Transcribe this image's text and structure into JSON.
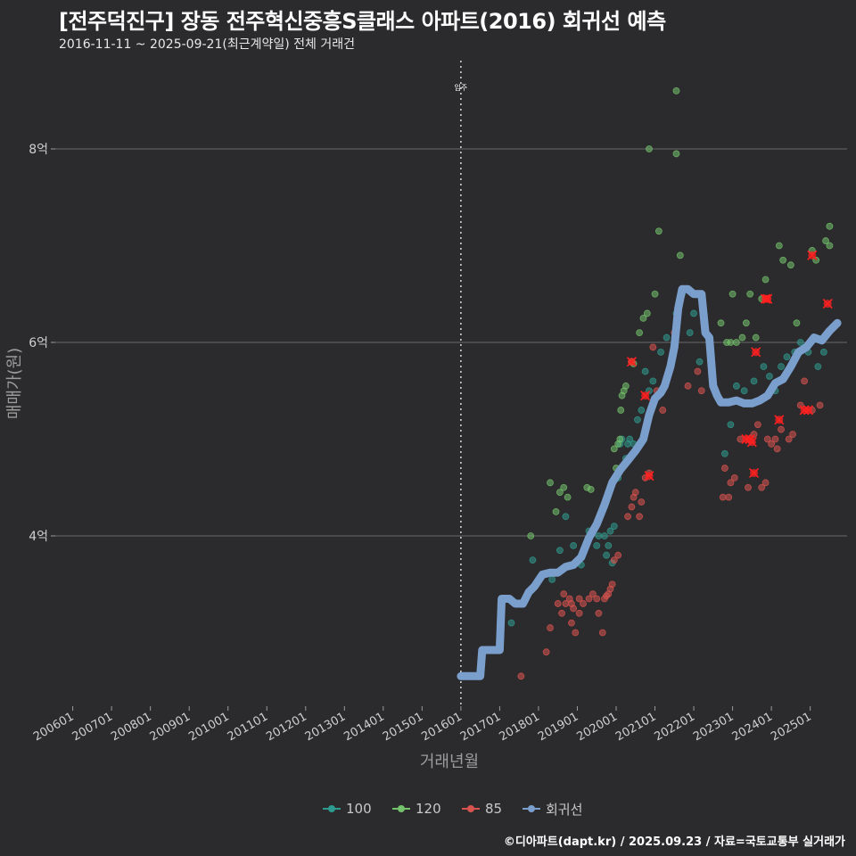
{
  "title": "[전주덕진구] 장동 전주혁신중흥S클래스 아파트(2016) 회귀선 예측",
  "subtitle": "2016-11-11 ~ 2025-09-21(최근계약일) 전체 거래건",
  "caption": "©디아파트(dapt.kr) / 2025.09.23 / 자료=국토교통부 실거래가",
  "colors": {
    "background": "#2b2b2d",
    "grid": "#6a6a6a",
    "s100": "#2f9a8f",
    "s120": "#74c26b",
    "s85": "#d9534f",
    "regression": "#7b9fcd",
    "highlight": "#ff2020"
  },
  "chart_data": {
    "type": "scatter",
    "title": "[전주덕진구] 장동 전주혁신중흥S클래스 아파트(2016) 회귀선 예측",
    "xlabel": "거래년월",
    "ylabel": "매매가(원)",
    "xlim": [
      2006.0,
      2025.9
    ],
    "ylim": [
      2.2,
      9.1
    ],
    "x_ticks": [
      {
        "label": "200601",
        "value": 2006.0
      },
      {
        "label": "200701",
        "value": 2007.0
      },
      {
        "label": "200801",
        "value": 2008.0
      },
      {
        "label": "200901",
        "value": 2009.0
      },
      {
        "label": "201001",
        "value": 2010.0
      },
      {
        "label": "201101",
        "value": 2011.0
      },
      {
        "label": "201201",
        "value": 2012.0
      },
      {
        "label": "201301",
        "value": 2013.0
      },
      {
        "label": "201401",
        "value": 2014.0
      },
      {
        "label": "201501",
        "value": 2015.0
      },
      {
        "label": "201601",
        "value": 2016.0
      },
      {
        "label": "201701",
        "value": 2017.0
      },
      {
        "label": "201801",
        "value": 2018.0
      },
      {
        "label": "201901",
        "value": 2019.0
      },
      {
        "label": "202001",
        "value": 2020.0
      },
      {
        "label": "202101",
        "value": 2021.0
      },
      {
        "label": "202201",
        "value": 2022.0
      },
      {
        "label": "202301",
        "value": 2023.0
      },
      {
        "label": "202401",
        "value": 2024.0
      },
      {
        "label": "202501",
        "value": 2025.0
      }
    ],
    "y_ticks": [
      {
        "label": "4억",
        "value": 4
      },
      {
        "label": "6억",
        "value": 6
      },
      {
        "label": "8억",
        "value": 8
      }
    ],
    "vline": {
      "x": 2016.0,
      "label": "입주"
    },
    "series": [
      {
        "name": "100",
        "color_key": "s100",
        "points": [
          [
            2017.85,
            3.75
          ],
          [
            2018.1,
            3.6
          ],
          [
            2018.35,
            3.55
          ],
          [
            2018.55,
            3.85
          ],
          [
            2018.7,
            4.2
          ],
          [
            2018.9,
            3.9
          ],
          [
            2019.1,
            3.7
          ],
          [
            2019.3,
            4.05
          ],
          [
            2019.5,
            3.9
          ],
          [
            2019.7,
            4.0
          ],
          [
            2019.75,
            3.8
          ],
          [
            2019.8,
            3.9
          ],
          [
            2019.85,
            4.05
          ],
          [
            2019.9,
            3.72
          ],
          [
            2019.95,
            4.1
          ],
          [
            2020.05,
            4.6
          ],
          [
            2020.15,
            5.0
          ],
          [
            2020.25,
            4.8
          ],
          [
            2020.35,
            5.0
          ],
          [
            2020.45,
            4.95
          ],
          [
            2020.55,
            5.2
          ],
          [
            2020.65,
            5.3
          ],
          [
            2020.75,
            5.7
          ],
          [
            2020.85,
            5.5
          ],
          [
            2020.95,
            5.6
          ],
          [
            2021.15,
            5.9
          ],
          [
            2021.3,
            6.05
          ],
          [
            2021.55,
            6.3
          ],
          [
            2021.7,
            6.5
          ],
          [
            2021.9,
            6.1
          ],
          [
            2022.0,
            6.3
          ],
          [
            2022.15,
            5.8
          ],
          [
            2022.8,
            4.85
          ],
          [
            2022.95,
            5.15
          ],
          [
            2023.1,
            5.55
          ],
          [
            2023.3,
            5.5
          ],
          [
            2023.55,
            5.6
          ],
          [
            2023.8,
            5.75
          ],
          [
            2023.95,
            5.65
          ],
          [
            2024.1,
            5.5
          ],
          [
            2024.25,
            5.75
          ],
          [
            2024.4,
            5.85
          ],
          [
            2024.6,
            5.9
          ],
          [
            2024.75,
            6.0
          ],
          [
            2024.95,
            5.9
          ],
          [
            2025.2,
            5.75
          ],
          [
            2025.35,
            5.9
          ],
          [
            2017.3,
            3.1
          ],
          [
            2019.55,
            4.0
          ],
          [
            2020.1,
            4.95
          ],
          [
            2020.3,
            4.95
          ]
        ]
      },
      {
        "name": "120",
        "color_key": "s120",
        "points": [
          [
            2017.8,
            4.0
          ],
          [
            2018.3,
            4.55
          ],
          [
            2018.45,
            4.25
          ],
          [
            2018.55,
            4.45
          ],
          [
            2018.65,
            4.5
          ],
          [
            2018.75,
            4.4
          ],
          [
            2019.25,
            4.5
          ],
          [
            2019.35,
            4.48
          ],
          [
            2019.95,
            4.9
          ],
          [
            2020.0,
            4.7
          ],
          [
            2020.05,
            4.95
          ],
          [
            2020.1,
            5.0
          ],
          [
            2020.12,
            5.3
          ],
          [
            2020.15,
            5.45
          ],
          [
            2020.2,
            5.5
          ],
          [
            2020.25,
            5.55
          ],
          [
            2020.4,
            5.8
          ],
          [
            2020.45,
            5.78
          ],
          [
            2020.6,
            6.1
          ],
          [
            2020.7,
            6.25
          ],
          [
            2020.8,
            6.3
          ],
          [
            2020.85,
            8.0
          ],
          [
            2021.0,
            6.5
          ],
          [
            2021.1,
            7.15
          ],
          [
            2021.55,
            8.6
          ],
          [
            2021.55,
            7.95
          ],
          [
            2021.65,
            6.9
          ],
          [
            2022.85,
            6.0
          ],
          [
            2022.95,
            6.0
          ],
          [
            2023.0,
            6.5
          ],
          [
            2023.1,
            6.0
          ],
          [
            2023.25,
            6.05
          ],
          [
            2023.35,
            6.2
          ],
          [
            2023.45,
            6.5
          ],
          [
            2023.75,
            6.45
          ],
          [
            2023.85,
            6.65
          ],
          [
            2024.2,
            7.0
          ],
          [
            2024.3,
            6.85
          ],
          [
            2024.5,
            6.8
          ],
          [
            2024.65,
            6.2
          ],
          [
            2025.05,
            6.95
          ],
          [
            2025.15,
            6.85
          ],
          [
            2025.4,
            7.05
          ],
          [
            2025.5,
            7.2
          ],
          [
            2025.5,
            7.0
          ],
          [
            2022.7,
            6.2
          ],
          [
            2023.6,
            6.05
          ]
        ]
      },
      {
        "name": "85",
        "color_key": "s85",
        "points": [
          [
            2017.55,
            2.55
          ],
          [
            2018.2,
            2.8
          ],
          [
            2018.3,
            3.05
          ],
          [
            2018.5,
            3.3
          ],
          [
            2018.6,
            3.2
          ],
          [
            2018.65,
            3.4
          ],
          [
            2018.7,
            3.3
          ],
          [
            2018.8,
            3.35
          ],
          [
            2018.85,
            3.3
          ],
          [
            2018.9,
            3.25
          ],
          [
            2018.95,
            3.0
          ],
          [
            2019.05,
            3.35
          ],
          [
            2019.15,
            3.3
          ],
          [
            2019.3,
            3.35
          ],
          [
            2019.4,
            3.4
          ],
          [
            2019.5,
            3.35
          ],
          [
            2019.55,
            3.2
          ],
          [
            2019.65,
            3.0
          ],
          [
            2019.7,
            3.35
          ],
          [
            2019.75,
            3.38
          ],
          [
            2019.8,
            3.4
          ],
          [
            2019.85,
            3.45
          ],
          [
            2019.9,
            3.5
          ],
          [
            2019.95,
            3.75
          ],
          [
            2020.05,
            3.8
          ],
          [
            2020.3,
            4.2
          ],
          [
            2020.4,
            4.3
          ],
          [
            2020.45,
            4.4
          ],
          [
            2020.5,
            4.45
          ],
          [
            2020.6,
            4.2
          ],
          [
            2020.65,
            4.35
          ],
          [
            2020.75,
            4.6
          ],
          [
            2020.85,
            4.65
          ],
          [
            2020.95,
            5.95
          ],
          [
            2021.05,
            5.5
          ],
          [
            2021.2,
            5.3
          ],
          [
            2021.5,
            6.1
          ],
          [
            2021.85,
            5.55
          ],
          [
            2022.1,
            5.7
          ],
          [
            2022.2,
            5.5
          ],
          [
            2022.75,
            4.4
          ],
          [
            2022.8,
            4.7
          ],
          [
            2022.9,
            4.4
          ],
          [
            2022.95,
            4.55
          ],
          [
            2023.05,
            4.6
          ],
          [
            2023.2,
            5.0
          ],
          [
            2023.4,
            4.5
          ],
          [
            2023.55,
            5.05
          ],
          [
            2023.65,
            5.15
          ],
          [
            2023.75,
            4.5
          ],
          [
            2023.85,
            4.55
          ],
          [
            2023.9,
            5.0
          ],
          [
            2024.0,
            4.95
          ],
          [
            2024.1,
            5.0
          ],
          [
            2024.15,
            4.9
          ],
          [
            2024.25,
            5.1
          ],
          [
            2024.45,
            5.0
          ],
          [
            2024.55,
            5.05
          ],
          [
            2024.75,
            5.35
          ],
          [
            2024.85,
            5.6
          ],
          [
            2025.05,
            5.3
          ],
          [
            2025.25,
            5.35
          ],
          [
            2019.05,
            3.2
          ],
          [
            2018.85,
            3.1
          ]
        ]
      }
    ],
    "highlighted": [
      [
        2020.4,
        5.8
      ],
      [
        2020.75,
        5.45
      ],
      [
        2020.85,
        4.62
      ],
      [
        2023.35,
        5.0
      ],
      [
        2023.45,
        5.0
      ],
      [
        2023.5,
        4.97
      ],
      [
        2023.55,
        4.65
      ],
      [
        2023.6,
        5.9
      ],
      [
        2023.85,
        6.45
      ],
      [
        2023.9,
        6.45
      ],
      [
        2024.2,
        5.2
      ],
      [
        2024.85,
        5.3
      ],
      [
        2024.95,
        5.3
      ],
      [
        2025.05,
        6.9
      ],
      [
        2025.45,
        6.4
      ]
    ],
    "regression": {
      "name": "회귀선",
      "color_key": "regression",
      "points": [
        [
          2016.0,
          2.55
        ],
        [
          2016.3,
          2.55
        ],
        [
          2016.5,
          2.55
        ],
        [
          2016.55,
          2.82
        ],
        [
          2016.85,
          2.82
        ],
        [
          2017.0,
          2.82
        ],
        [
          2017.05,
          3.35
        ],
        [
          2017.25,
          3.35
        ],
        [
          2017.4,
          3.3
        ],
        [
          2017.6,
          3.3
        ],
        [
          2017.75,
          3.42
        ],
        [
          2017.9,
          3.48
        ],
        [
          2018.1,
          3.6
        ],
        [
          2018.3,
          3.62
        ],
        [
          2018.5,
          3.62
        ],
        [
          2018.7,
          3.68
        ],
        [
          2018.9,
          3.7
        ],
        [
          2019.1,
          3.78
        ],
        [
          2019.3,
          3.98
        ],
        [
          2019.5,
          4.12
        ],
        [
          2019.7,
          4.32
        ],
        [
          2019.9,
          4.55
        ],
        [
          2020.1,
          4.68
        ],
        [
          2020.3,
          4.78
        ],
        [
          2020.5,
          4.88
        ],
        [
          2020.7,
          5.0
        ],
        [
          2020.85,
          5.25
        ],
        [
          2021.0,
          5.42
        ],
        [
          2021.15,
          5.48
        ],
        [
          2021.25,
          5.55
        ],
        [
          2021.4,
          5.75
        ],
        [
          2021.5,
          5.95
        ],
        [
          2021.6,
          6.35
        ],
        [
          2021.7,
          6.55
        ],
        [
          2021.85,
          6.55
        ],
        [
          2022.0,
          6.5
        ],
        [
          2022.2,
          6.5
        ],
        [
          2022.3,
          6.1
        ],
        [
          2022.4,
          6.05
        ],
        [
          2022.5,
          5.55
        ],
        [
          2022.6,
          5.45
        ],
        [
          2022.7,
          5.38
        ],
        [
          2022.9,
          5.38
        ],
        [
          2023.1,
          5.4
        ],
        [
          2023.3,
          5.37
        ],
        [
          2023.5,
          5.37
        ],
        [
          2023.7,
          5.4
        ],
        [
          2023.9,
          5.45
        ],
        [
          2024.1,
          5.58
        ],
        [
          2024.3,
          5.62
        ],
        [
          2024.5,
          5.75
        ],
        [
          2024.7,
          5.9
        ],
        [
          2024.9,
          5.95
        ],
        [
          2025.1,
          6.05
        ],
        [
          2025.3,
          6.02
        ],
        [
          2025.5,
          6.12
        ],
        [
          2025.7,
          6.2
        ]
      ]
    }
  },
  "legend": [
    {
      "label": "100",
      "color_key": "s100"
    },
    {
      "label": "120",
      "color_key": "s120"
    },
    {
      "label": "85",
      "color_key": "s85"
    },
    {
      "label": "회귀선",
      "color_key": "regression"
    }
  ]
}
